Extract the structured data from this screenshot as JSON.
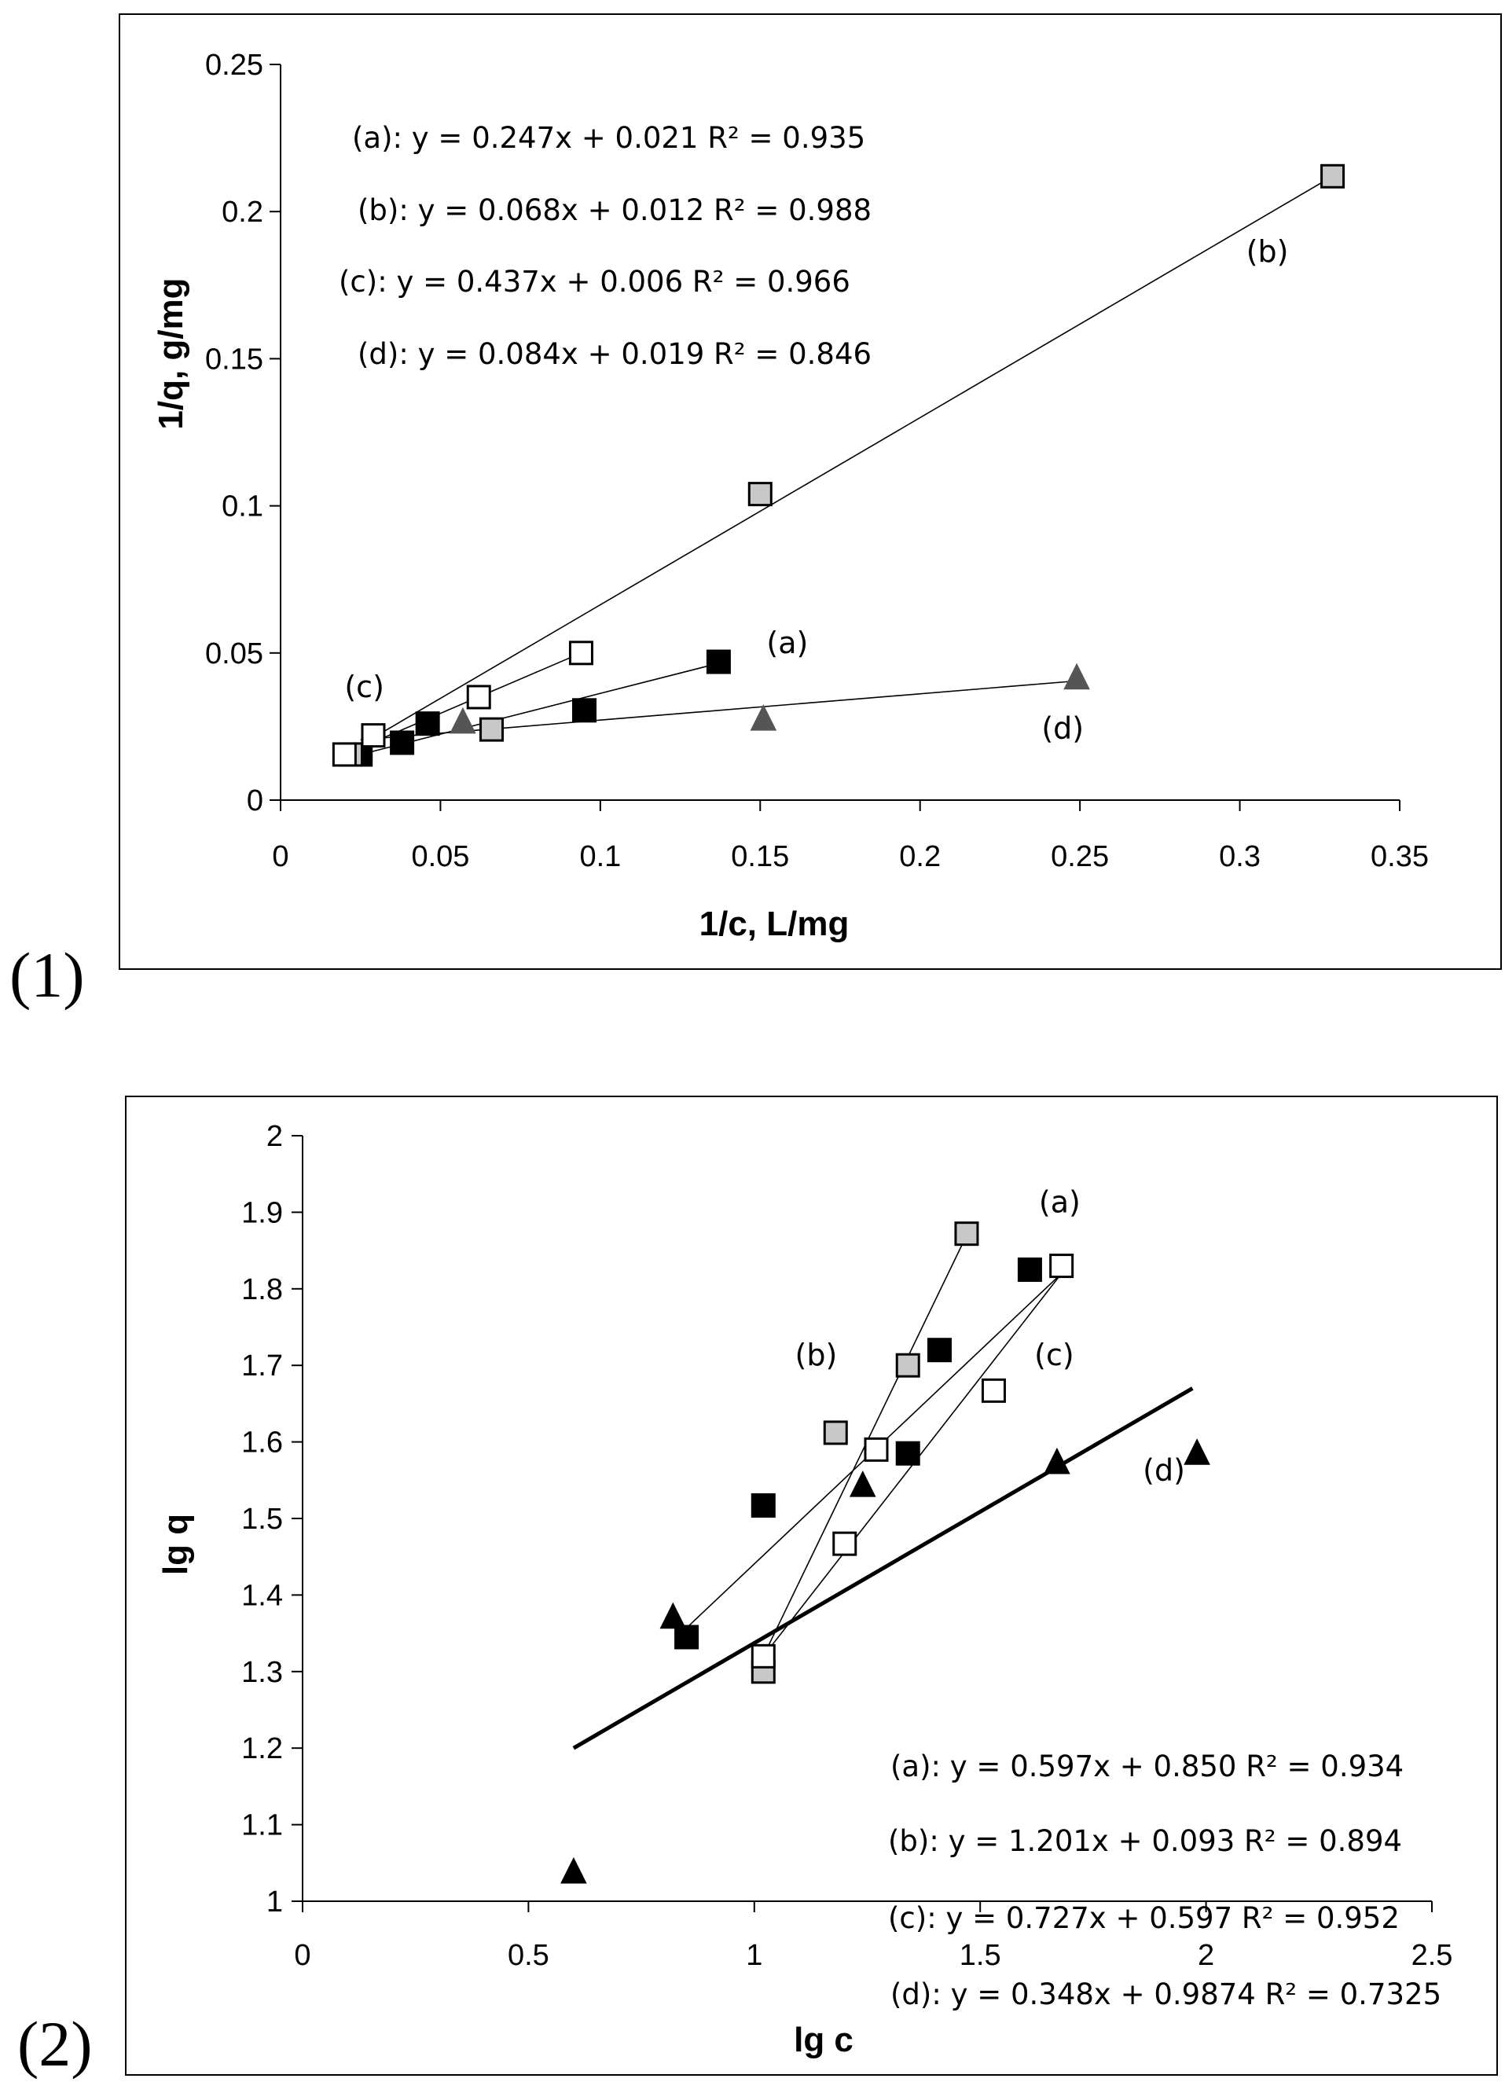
{
  "chart_data": [
    {
      "type": "scatter",
      "panel_label": "(1)",
      "xlabel": "1/c, L/mg",
      "ylabel": "1/q, g/mg",
      "xlim": [
        0,
        0.35
      ],
      "ylim": [
        0,
        0.25
      ],
      "x_ticks": [
        0,
        0.05,
        0.1,
        0.15,
        0.2,
        0.25,
        0.3,
        0.35
      ],
      "x_tick_labels": [
        "0",
        "0.05",
        "0.1",
        "0.15",
        "0.2",
        "0.25",
        "0.3",
        "0.35"
      ],
      "y_ticks": [
        0,
        0.05,
        0.1,
        0.15,
        0.2,
        0.25
      ],
      "y_tick_labels": [
        "0",
        "0.05",
        "0.1",
        "0.15",
        "0.2",
        "0.25"
      ],
      "equations": [
        "(a): y = 0.247x + 0.021 R² = 0.935",
        "(b): y = 0.068x + 0.012 R² = 0.988",
        "(c): y = 0.437x + 0.006 R² = 0.966",
        "(d): y = 0.084x + 0.019 R² = 0.846"
      ],
      "series": [
        {
          "name": "(a)",
          "marker": "square-black",
          "x": [
            0.025,
            0.038,
            0.046,
            0.095,
            0.137
          ],
          "y": [
            0.0155,
            0.0195,
            0.026,
            0.0305,
            0.047
          ],
          "line_x": [
            0.025,
            0.137
          ],
          "line_y": [
            0.0155,
            0.0465
          ],
          "label_x": 0.152,
          "label_y": 0.05
        },
        {
          "name": "(b)",
          "marker": "square-gray",
          "x": [
            0.022,
            0.066,
            0.15,
            0.329
          ],
          "y": [
            0.0155,
            0.024,
            0.104,
            0.212
          ],
          "line_x": [
            0.02,
            0.329
          ],
          "line_y": [
            0.0155,
            0.212
          ],
          "label_x": 0.302,
          "label_y": 0.183
        },
        {
          "name": "(c)",
          "marker": "square-white",
          "x": [
            0.02,
            0.029,
            0.062,
            0.094
          ],
          "y": [
            0.0155,
            0.022,
            0.035,
            0.05
          ],
          "line_x": [
            0.02,
            0.094
          ],
          "line_y": [
            0.0155,
            0.05
          ],
          "label_x": 0.02,
          "label_y": 0.035
        },
        {
          "name": "(d)",
          "marker": "triangle-gray",
          "x": [
            0.057,
            0.151,
            0.249
          ],
          "y": [
            0.027,
            0.028,
            0.042
          ],
          "line_x": [
            0.025,
            0.249
          ],
          "line_y": [
            0.0205,
            0.0405
          ],
          "label_x": 0.238,
          "label_y": 0.021
        }
      ]
    },
    {
      "type": "scatter",
      "panel_label": "(2)",
      "xlabel": "lg c",
      "ylabel": "lg q",
      "xlim": [
        0,
        2.5
      ],
      "ylim": [
        1,
        2
      ],
      "x_ticks": [
        0,
        0.5,
        1,
        1.5,
        2,
        2.5
      ],
      "x_tick_labels": [
        "0",
        "0.5",
        "1",
        "1.5",
        "2",
        "2.5"
      ],
      "y_ticks": [
        1,
        1.1,
        1.2,
        1.3,
        1.4,
        1.5,
        1.6,
        1.7,
        1.8,
        1.9,
        2
      ],
      "y_tick_labels": [
        "1",
        "1.1",
        "1.2",
        "1.3",
        "1.4",
        "1.5",
        "1.6",
        "1.7",
        "1.8",
        "1.9",
        "2"
      ],
      "equations": [
        "(a): y = 0.597x + 0.850 R² = 0.934",
        "(b): y = 1.201x + 0.093 R² = 0.894",
        "(c): y = 0.727x + 0.597 R² = 0.952",
        "(d): y = 0.348x + 0.9874 R² = 0.7325"
      ],
      "series": [
        {
          "name": "(a)",
          "marker": "square-black",
          "x": [
            0.85,
            1.02,
            1.34,
            1.41,
            1.61
          ],
          "y": [
            1.345,
            1.517,
            1.585,
            1.72,
            1.825
          ],
          "line_x": [
            0.85,
            1.68
          ],
          "line_y": [
            1.357,
            1.82
          ],
          "label_x": 1.63,
          "label_y": 1.9
        },
        {
          "name": "(b)",
          "marker": "square-gray",
          "x": [
            1.02,
            1.18,
            1.34,
            1.47
          ],
          "y": [
            1.3,
            1.612,
            1.7,
            1.872
          ],
          "line_x": [
            1.02,
            1.47
          ],
          "line_y": [
            1.32,
            1.87
          ],
          "label_x": 1.09,
          "label_y": 1.7
        },
        {
          "name": "(c)",
          "marker": "square-white",
          "x": [
            1.02,
            1.2,
            1.27,
            1.53,
            1.68
          ],
          "y": [
            1.32,
            1.467,
            1.59,
            1.667,
            1.83
          ],
          "line_x": [
            1.02,
            1.68
          ],
          "line_y": [
            1.32,
            1.82
          ],
          "label_x": 1.62,
          "label_y": 1.7
        },
        {
          "name": "(d)",
          "marker": "triangle-black",
          "x": [
            0.6,
            0.82,
            1.24,
            1.67,
            1.98
          ],
          "y": [
            1.04,
            1.373,
            1.545,
            1.575,
            1.587
          ],
          "line_x": [
            0.6,
            1.97
          ],
          "line_y": [
            1.2,
            1.67
          ],
          "label_x": 1.86,
          "label_y": 1.55,
          "bold_line": true
        }
      ]
    }
  ]
}
